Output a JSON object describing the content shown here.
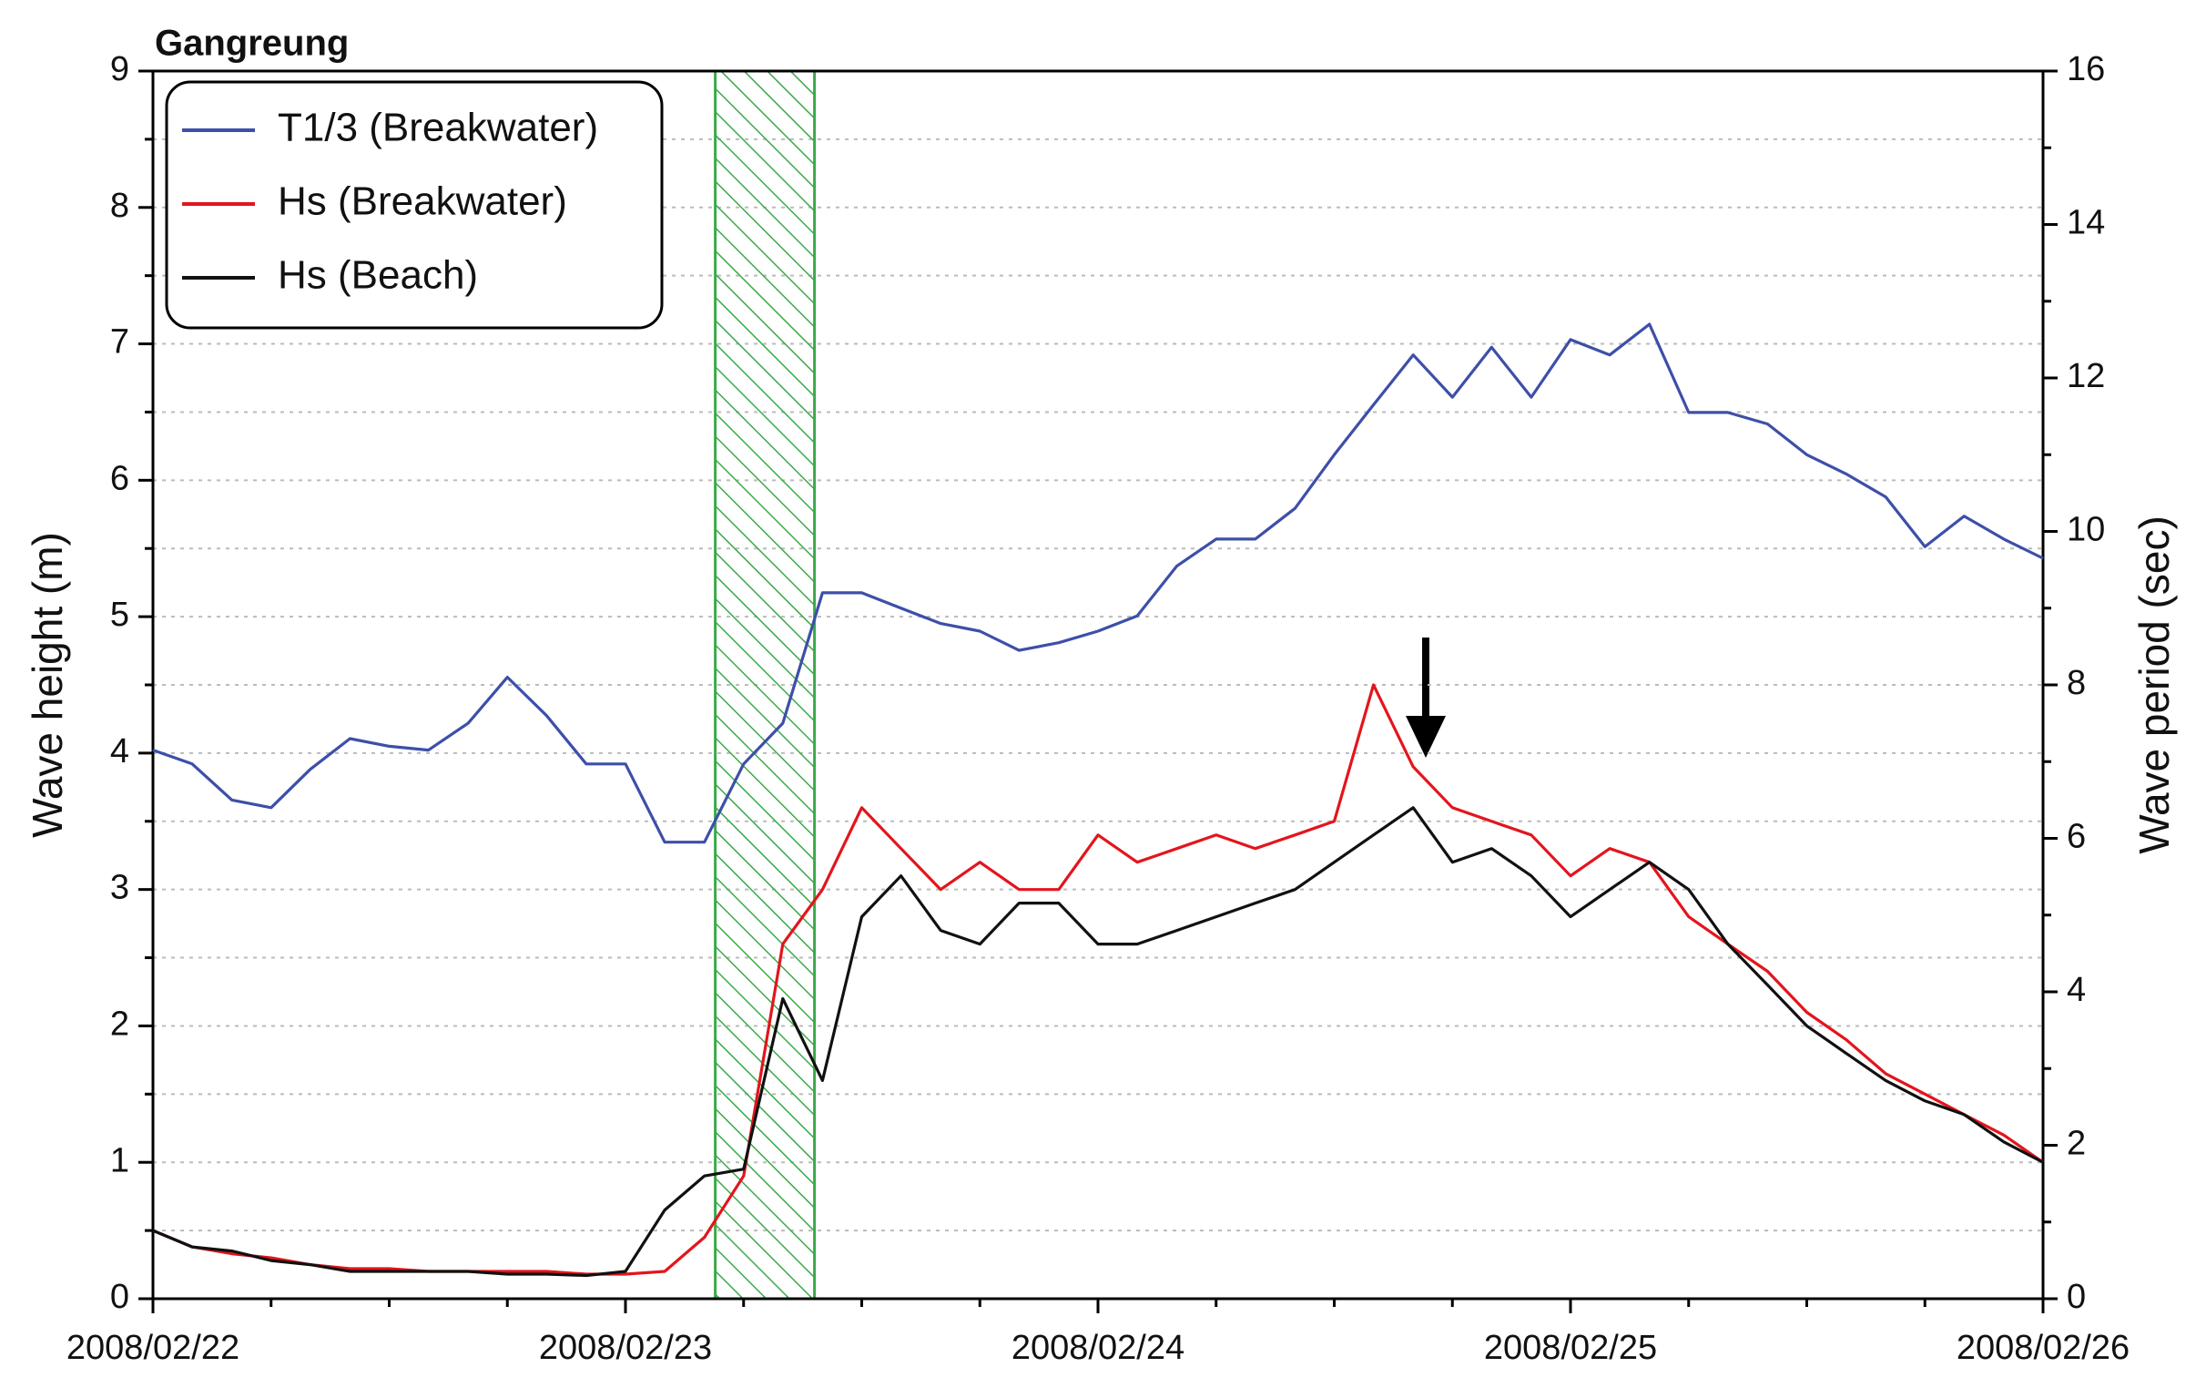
{
  "chart_data": {
    "type": "line",
    "title": "Gangreung",
    "ylabel": "Wave height (m)",
    "y2label": "Wave period (sec)",
    "x": [
      0,
      0.083,
      0.167,
      0.25,
      0.333,
      0.417,
      0.5,
      0.583,
      0.667,
      0.75,
      0.833,
      0.917,
      1,
      1.083,
      1.167,
      1.25,
      1.333,
      1.417,
      1.5,
      1.583,
      1.667,
      1.75,
      1.833,
      1.917,
      2,
      2.083,
      2.167,
      2.25,
      2.333,
      2.417,
      2.5,
      2.583,
      2.667,
      2.75,
      2.833,
      2.917,
      3,
      3.083,
      3.167,
      3.25,
      3.333,
      3.417,
      3.5,
      3.583,
      3.667,
      3.75,
      3.833,
      3.917,
      4
    ],
    "xlim": [
      0,
      4
    ],
    "xticks": [
      {
        "value": 0,
        "label": "2008/02/22"
      },
      {
        "value": 1,
        "label": "2008/02/23"
      },
      {
        "value": 2,
        "label": "2008/02/24"
      },
      {
        "value": 3,
        "label": "2008/02/25"
      },
      {
        "value": 4,
        "label": "2008/02/26"
      }
    ],
    "xticks_minor": [
      0.25,
      0.5,
      0.75,
      1.25,
      1.5,
      1.75,
      2.25,
      2.5,
      2.75,
      3.25,
      3.5,
      3.75
    ],
    "ylim": [
      0,
      9
    ],
    "yticks": [
      0,
      1,
      2,
      3,
      4,
      5,
      6,
      7,
      8,
      9
    ],
    "yticks_minor": [
      0.5,
      1.5,
      2.5,
      3.5,
      4.5,
      5.5,
      6.5,
      7.5,
      8.5
    ],
    "y2lim": [
      0,
      16
    ],
    "y2ticks": [
      0,
      2,
      4,
      6,
      8,
      10,
      12,
      14,
      16
    ],
    "y2ticks_minor": [
      1,
      3,
      5,
      7,
      9,
      11,
      13,
      15
    ],
    "grid": true,
    "legend": "upper left",
    "shaded_region": [
      1.19,
      1.4
    ],
    "shaded_color": "#3aaa4a",
    "series": [
      {
        "name": "T1/3 (Breakwater)",
        "color": "#3d4fa8",
        "axis": "y2",
        "values": [
          7.15,
          6.97,
          6.5,
          6.4,
          6.9,
          7.3,
          7.2,
          7.15,
          7.5,
          8.1,
          7.6,
          6.97,
          6.97,
          5.95,
          5.95,
          6.97,
          7.5,
          9.2,
          9.2,
          9.0,
          8.8,
          8.7,
          8.45,
          8.55,
          8.7,
          8.9,
          9.55,
          9.9,
          9.9,
          10.3,
          11.0,
          11.65,
          12.3,
          11.75,
          12.4,
          11.75,
          12.5,
          12.3,
          12.7,
          11.55,
          11.55,
          11.4,
          11.0,
          10.75,
          10.45,
          9.8,
          10.2,
          9.9,
          9.65
        ]
      },
      {
        "name": "Hs (Breakwater)",
        "color": "#e3151c",
        "values": [
          0.5,
          0.38,
          0.33,
          0.3,
          0.25,
          0.22,
          0.22,
          0.2,
          0.2,
          0.2,
          0.2,
          0.18,
          0.18,
          0.2,
          0.45,
          0.9,
          2.6,
          3.0,
          3.6,
          3.3,
          3.0,
          3.2,
          3.0,
          3.0,
          3.4,
          3.2,
          3.3,
          3.4,
          3.3,
          3.4,
          3.5,
          4.5,
          3.9,
          3.6,
          3.5,
          3.4,
          3.1,
          3.3,
          3.2,
          2.8,
          2.6,
          2.4,
          2.1,
          1.9,
          1.65,
          1.5,
          1.35,
          1.2,
          1.0
        ]
      },
      {
        "name": "Hs (Beach)",
        "color": "#111111",
        "values": [
          0.5,
          0.38,
          0.35,
          0.28,
          0.25,
          0.2,
          0.2,
          0.2,
          0.2,
          0.18,
          0.18,
          0.17,
          0.2,
          0.65,
          0.9,
          0.95,
          2.2,
          1.6,
          2.8,
          3.1,
          2.7,
          2.6,
          2.9,
          2.9,
          2.6,
          2.6,
          2.7,
          2.8,
          2.9,
          3.0,
          3.2,
          3.4,
          3.6,
          3.2,
          3.3,
          3.1,
          2.8,
          3.0,
          3.2,
          3.0,
          2.6,
          2.3,
          2.0,
          1.8,
          1.6,
          1.45,
          1.35,
          1.15,
          1.0
        ]
      }
    ]
  }
}
